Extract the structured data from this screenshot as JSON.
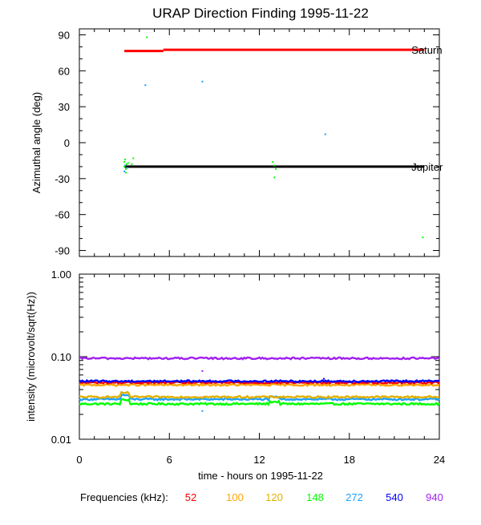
{
  "title": "URAP Direction Finding  1995-11-22",
  "chart_data": [
    {
      "type": "scatter",
      "panel": "top",
      "ylabel": "Azimuthal angle (deg)",
      "xlim": [
        0,
        24
      ],
      "ylim": [
        -95,
        95
      ],
      "yticks": [
        90,
        60,
        30,
        0,
        -30,
        -60,
        -90
      ],
      "ytick_labels": [
        "90",
        "60",
        "30",
        "0",
        "-30",
        "-60",
        "-90"
      ],
      "reference_lines": [
        {
          "name": "Saturn",
          "color": "#ff0000",
          "segments": [
            {
              "x": [
                3.0,
                5.6
              ],
              "y": 76.5
            },
            {
              "x": [
                5.6,
                23.0
              ],
              "y": 77.5
            }
          ]
        },
        {
          "name": "Jupiter",
          "color": "#000000",
          "segments": [
            {
              "x": [
                3.0,
                23.0
              ],
              "y": -20
            }
          ]
        }
      ],
      "points": [
        {
          "x": 3.0,
          "y": -16,
          "freq": "148"
        },
        {
          "x": 3.05,
          "y": -19,
          "freq": "272"
        },
        {
          "x": 3.1,
          "y": -22,
          "freq": "148"
        },
        {
          "x": 3.0,
          "y": -24,
          "freq": "272"
        },
        {
          "x": 3.15,
          "y": -18,
          "freq": "148"
        },
        {
          "x": 3.05,
          "y": -14,
          "freq": "148"
        },
        {
          "x": 3.2,
          "y": -21,
          "freq": "272"
        },
        {
          "x": 3.1,
          "y": -25,
          "freq": "148"
        },
        {
          "x": 3.0,
          "y": -20,
          "freq": "148"
        },
        {
          "x": 3.25,
          "y": -17,
          "freq": "148"
        },
        {
          "x": 3.5,
          "y": -18,
          "freq": "148"
        },
        {
          "x": 3.6,
          "y": -13,
          "freq": "148"
        },
        {
          "x": 4.5,
          "y": 88,
          "freq": "148"
        },
        {
          "x": 4.4,
          "y": 48,
          "freq": "272"
        },
        {
          "x": 8.2,
          "y": 51,
          "freq": "272"
        },
        {
          "x": 12.9,
          "y": -16,
          "freq": "148"
        },
        {
          "x": 13.0,
          "y": -19,
          "freq": "148"
        },
        {
          "x": 13.1,
          "y": -22,
          "freq": "148"
        },
        {
          "x": 13.0,
          "y": -29,
          "freq": "148"
        },
        {
          "x": 16.4,
          "y": 7,
          "freq": "272"
        },
        {
          "x": 22.9,
          "y": -79,
          "freq": "148"
        }
      ]
    },
    {
      "type": "line",
      "panel": "bottom",
      "ylabel": "intensity (microvolt/sqrt(Hz))",
      "xlabel": "time - hours on 1995-11-22",
      "xlim": [
        0,
        24
      ],
      "ylim": [
        0.01,
        1.0
      ],
      "yscale": "log",
      "xticks": [
        0,
        6,
        12,
        18,
        24
      ],
      "xtick_labels": [
        "0",
        "6",
        "12",
        "18",
        "24"
      ],
      "yticks": [
        1.0,
        0.1,
        0.01
      ],
      "ytick_labels": [
        "1.00",
        "0.10",
        "0.01"
      ],
      "series": [
        {
          "name": "52",
          "color": "#ff0000",
          "base": 0.0485
        },
        {
          "name": "100",
          "color": "#ffa500",
          "base": 0.0455
        },
        {
          "name": "120",
          "color": "#e0b000",
          "base": 0.0325
        },
        {
          "name": "148",
          "color": "#00ff00",
          "base": 0.0268
        },
        {
          "name": "272",
          "color": "#1ea0ff",
          "base": 0.0305
        },
        {
          "name": "540",
          "color": "#0000ff",
          "base": 0.0505
        },
        {
          "name": "940",
          "color": "#a020f0",
          "base": 0.0955
        }
      ]
    }
  ],
  "legend": {
    "label": "Frequencies (kHz):",
    "items": [
      {
        "label": "52",
        "color": "#ff0000"
      },
      {
        "label": "100",
        "color": "#ffa500"
      },
      {
        "label": "120",
        "color": "#e0b000"
      },
      {
        "label": "148",
        "color": "#00ff00"
      },
      {
        "label": "272",
        "color": "#1ea0ff"
      },
      {
        "label": "540",
        "color": "#0000ff"
      },
      {
        "label": "940",
        "color": "#a020f0"
      }
    ]
  }
}
